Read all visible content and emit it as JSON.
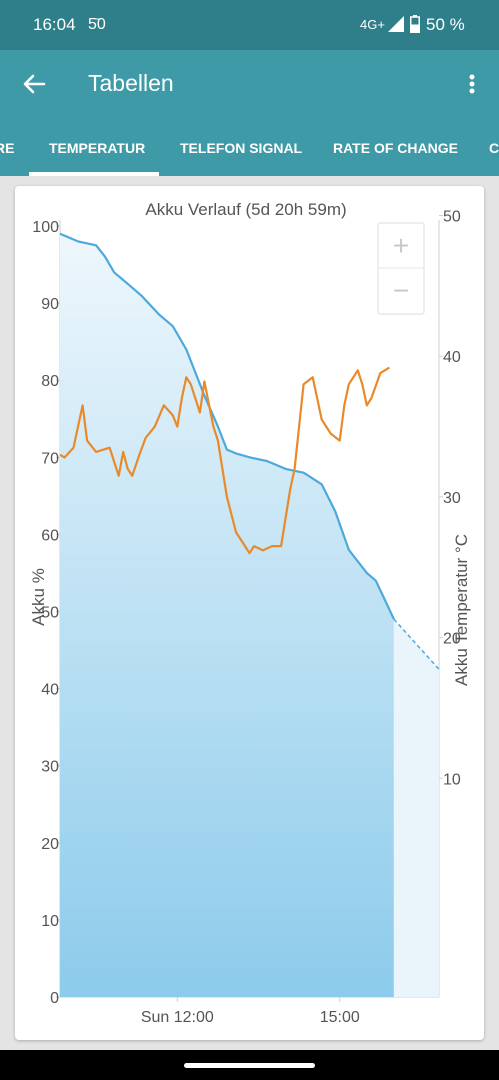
{
  "status_bar": {
    "time": "16:04",
    "sim_indicator": "5̄0",
    "network": "4G+",
    "battery": "50 %"
  },
  "app_bar": {
    "title": "Tabellen",
    "back_icon": "arrow-back-icon",
    "menu_icon": "more-vert-icon"
  },
  "tabs": [
    {
      "label": "RE",
      "selected": false
    },
    {
      "label": "TEMPERATUR",
      "selected": true
    },
    {
      "label": "TELEFON SIGNAL",
      "selected": false
    },
    {
      "label": "RATE OF CHANGE",
      "selected": false
    },
    {
      "label": "C",
      "selected": false
    }
  ],
  "zoom": {
    "in_label": "+",
    "out_label": "−"
  },
  "colors": {
    "header": "#3e9aa6",
    "status_bar": "#2f7f8a",
    "battery_line": "#4ca9dc",
    "temperature_line": "#e98a2a",
    "area_top": "#eef7fc",
    "area_bottom": "#8ccbeb"
  },
  "chart_data": {
    "type": "line",
    "title": "Akku Verlauf (5d 20h 59m)",
    "ylabel": "Akku %",
    "y2label": "Akku Temperatur °C",
    "ylim": [
      0,
      100
    ],
    "y2lim": [
      0,
      55
    ],
    "yticks": [
      0,
      10,
      20,
      30,
      40,
      50,
      60,
      70,
      80,
      90,
      100
    ],
    "y2ticks": [
      10,
      20,
      30,
      40,
      50
    ],
    "xlim": [
      "09:50",
      "16:50"
    ],
    "xticks": [
      {
        "x": "12:00",
        "label": "Sun 12:00"
      },
      {
        "x": "15:00",
        "label": "15:00"
      }
    ],
    "grid": false,
    "series": [
      {
        "type": "area",
        "axis": "left",
        "color": "#4ca9dc",
        "x": [
          "09:50",
          "10:10",
          "10:30",
          "10:40",
          "10:50",
          "11:05",
          "11:20",
          "11:40",
          "11:55",
          "12:10",
          "12:30",
          "12:45",
          "12:55",
          "13:05",
          "13:20",
          "13:40",
          "14:00",
          "14:20",
          "14:40",
          "14:55",
          "15:10",
          "15:20",
          "15:30",
          "15:40",
          "15:50",
          "16:00"
        ],
        "values": [
          99.0,
          98.0,
          97.5,
          96.0,
          94.0,
          92.5,
          91.0,
          88.5,
          87.0,
          84.0,
          78.0,
          74.0,
          71.0,
          70.5,
          70.0,
          69.5,
          68.5,
          68.0,
          66.5,
          63.0,
          58.0,
          56.5,
          55.0,
          54.0,
          51.5,
          49.0
        ]
      },
      {
        "type": "line",
        "axis": "left",
        "style": "dashed",
        "color": "#4ca9dc",
        "x": [
          "16:00",
          "16:50"
        ],
        "values": [
          49.0,
          42.5
        ]
      },
      {
        "type": "line",
        "axis": "right",
        "color": "#e98a2a",
        "x": [
          "09:50",
          "09:55",
          "10:05",
          "10:15",
          "10:20",
          "10:30",
          "10:45",
          "10:55",
          "11:00",
          "11:05",
          "11:10",
          "11:18",
          "11:25",
          "11:35",
          "11:45",
          "11:55",
          "12:00",
          "12:05",
          "12:10",
          "12:15",
          "12:25",
          "12:30",
          "12:40",
          "12:45",
          "12:55",
          "13:05",
          "13:10",
          "13:15",
          "13:20",
          "13:25",
          "13:35",
          "13:45",
          "13:55",
          "14:05",
          "14:10",
          "14:20",
          "14:30",
          "14:40",
          "14:50",
          "15:00",
          "15:05",
          "15:10",
          "15:15",
          "15:20",
          "15:25",
          "15:30",
          "15:35",
          "15:45",
          "15:50",
          "15:55"
        ],
        "values": [
          33.0,
          32.8,
          33.5,
          36.5,
          34.0,
          33.2,
          33.5,
          31.5,
          33.2,
          32.0,
          31.5,
          33.0,
          34.2,
          35.0,
          36.5,
          35.8,
          35.0,
          37.0,
          38.5,
          38.0,
          36.0,
          38.2,
          35.0,
          34.0,
          30.0,
          27.5,
          27.0,
          26.5,
          26.0,
          26.5,
          26.2,
          26.5,
          26.5,
          30.5,
          32.0,
          38.0,
          38.5,
          35.5,
          34.5,
          34.0,
          36.5,
          38.0,
          38.5,
          39.0,
          38.0,
          36.5,
          37.0,
          38.8,
          39.0,
          39.2
        ]
      }
    ]
  }
}
